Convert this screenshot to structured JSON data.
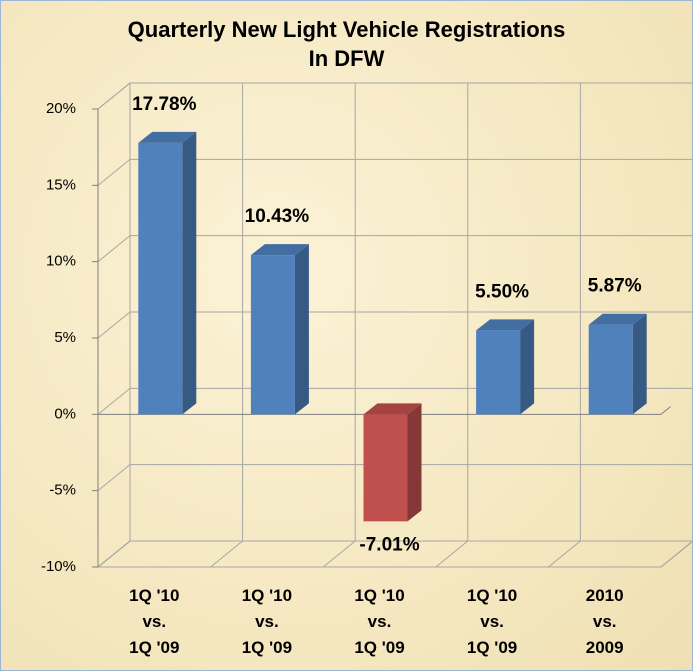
{
  "chart_data": {
    "type": "bar3d",
    "title": "Quarterly New Light Vehicle Registrations\nIn DFW",
    "categories": [
      "1Q '10\nvs.\n1Q '09",
      "1Q '10\nvs.\n1Q '09",
      "1Q '10\nvs.\n1Q '09",
      "1Q '10\nvs.\n1Q '09",
      "2010\nvs.\n2009"
    ],
    "values": [
      17.78,
      10.43,
      -7.01,
      5.5,
      5.87
    ],
    "value_labels": [
      "17.78%",
      "10.43%",
      "-7.01%",
      "5.50%",
      "5.87%"
    ],
    "colors": [
      "#4f81bd",
      "#4f81bd",
      "#c0504d",
      "#4f81bd",
      "#4f81bd"
    ],
    "ylim": [
      -10,
      20
    ],
    "yticks": [
      {
        "value": -10,
        "label": "-10%"
      },
      {
        "value": -5,
        "label": "-5%"
      },
      {
        "value": 0,
        "label": "0%"
      },
      {
        "value": 5,
        "label": "5%"
      },
      {
        "value": 10,
        "label": "10%"
      },
      {
        "value": 15,
        "label": "15%"
      },
      {
        "value": 20,
        "label": "20%"
      }
    ],
    "grid": true
  }
}
